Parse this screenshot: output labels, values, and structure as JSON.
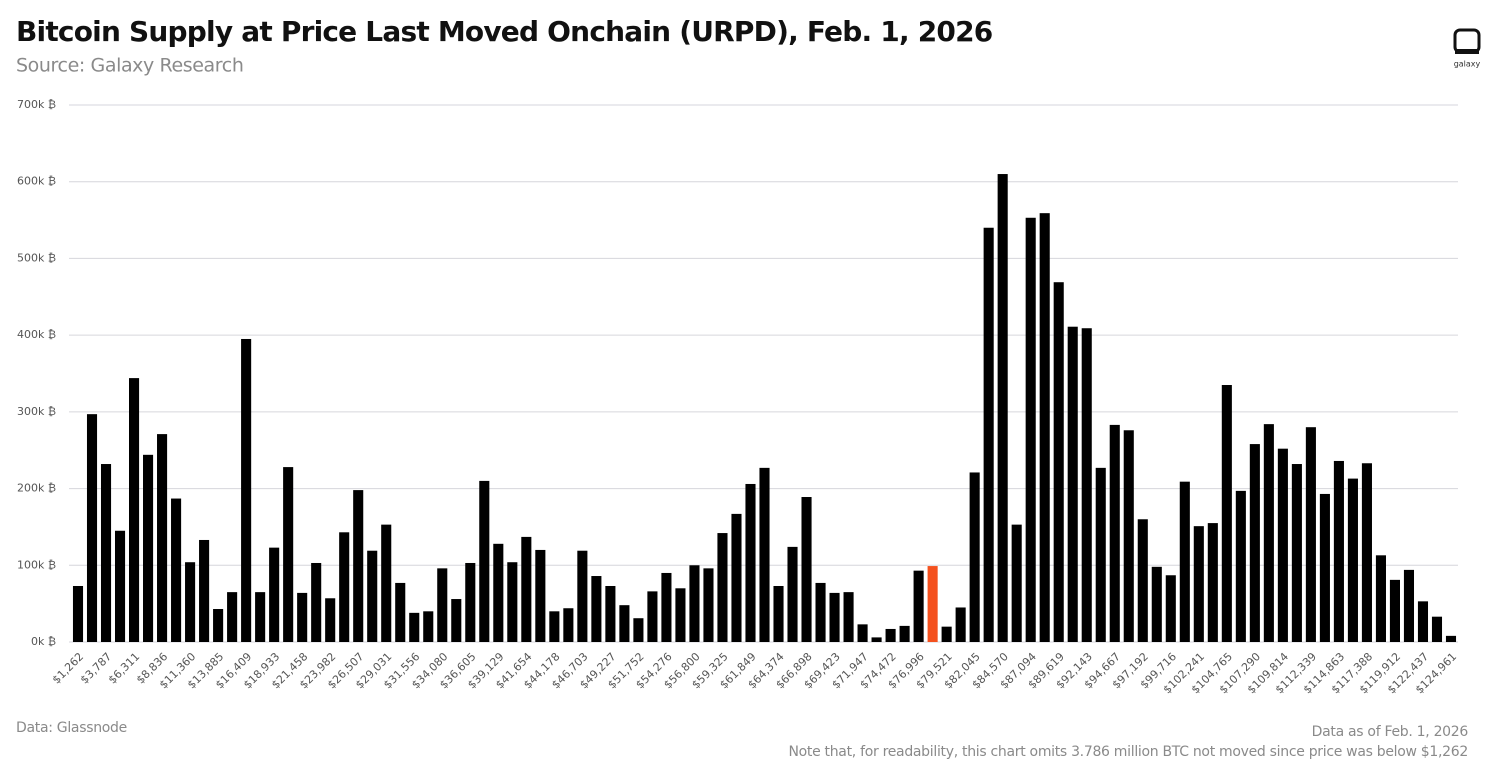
{
  "chart_data": {
    "type": "bar",
    "title": "Bitcoin Supply at Price Last Moved Onchain (URPD), Feb. 1, 2026",
    "subtitle": "Source: Galaxy Research",
    "logo_text": "galaxy",
    "source": "Data: Glassnode",
    "date_note": "Data as of Feb. 1, 2026",
    "note": "Note that, for readability, this chart omits 3.786 million BTC not moved since price was below $1,262",
    "categories": [
      "$1,262",
      null,
      "$3,787",
      null,
      "$6,311",
      null,
      "$8,836",
      null,
      "$11,360",
      null,
      "$13,885",
      null,
      "$16,409",
      null,
      "$18,933",
      null,
      "$21,458",
      null,
      "$23,982",
      null,
      "$26,507",
      null,
      "$29,031",
      null,
      "$31,556",
      null,
      "$34,080",
      null,
      "$36,605",
      null,
      "$39,129",
      null,
      "$41,654",
      null,
      "$44,178",
      null,
      "$46,703",
      null,
      "$49,227",
      null,
      "$51,752",
      null,
      "$54,276",
      null,
      "$56,800",
      null,
      "$59,325",
      null,
      "$61,849",
      null,
      "$64,374",
      null,
      "$66,898",
      null,
      "$69,423",
      null,
      "$71,947",
      null,
      "$74,472",
      null,
      "$76,996",
      null,
      "$79,521",
      null,
      "$82,045",
      null,
      "$84,570",
      null,
      "$87,094",
      null,
      "$89,619",
      null,
      "$92,143",
      null,
      "$94,667",
      null,
      "$97,192",
      null,
      "$99,716",
      null,
      "$102,241",
      null,
      "$104,765",
      null,
      "$107,290",
      null,
      "$109,814",
      null,
      "$112,339",
      null,
      "$114,863",
      null,
      "$117,388",
      null,
      "$119,912",
      null,
      "$122,437",
      null,
      "$124,961"
    ],
    "values": [
      73000,
      297000,
      232000,
      145000,
      344000,
      244000,
      271000,
      187000,
      104000,
      133000,
      43000,
      65000,
      395000,
      65000,
      123000,
      228000,
      64000,
      103000,
      57000,
      143000,
      198000,
      119000,
      153000,
      77000,
      38000,
      40000,
      96000,
      56000,
      103000,
      210000,
      128000,
      104000,
      137000,
      120000,
      40000,
      44000,
      119000,
      86000,
      73000,
      48000,
      31000,
      66000,
      90000,
      70000,
      100000,
      96000,
      142000,
      167000,
      206000,
      227000,
      73000,
      124000,
      189000,
      77000,
      64000,
      65000,
      23000,
      6000,
      17000,
      21000,
      93000,
      99000,
      20000,
      45000,
      221000,
      540000,
      610000,
      153000,
      553000,
      559000,
      469000,
      411000,
      409000,
      227000,
      283000,
      276000,
      160000,
      98000,
      87000,
      209000,
      151000,
      155000,
      335000,
      197000,
      258000,
      284000,
      252000,
      232000,
      280000,
      193000,
      236000,
      213000,
      233000,
      113000,
      81000,
      94000,
      53000,
      33000,
      8000
    ],
    "colors": [
      "#000000",
      "#000000",
      "#000000",
      "#000000",
      "#000000",
      "#000000",
      "#000000",
      "#000000",
      "#000000",
      "#000000",
      "#000000",
      "#000000",
      "#000000",
      "#000000",
      "#000000",
      "#000000",
      "#000000",
      "#000000",
      "#000000",
      "#000000",
      "#000000",
      "#000000",
      "#000000",
      "#000000",
      "#000000",
      "#000000",
      "#000000",
      "#000000",
      "#000000",
      "#000000",
      "#000000",
      "#000000",
      "#000000",
      "#000000",
      "#000000",
      "#000000",
      "#000000",
      "#000000",
      "#000000",
      "#000000",
      "#000000",
      "#000000",
      "#000000",
      "#000000",
      "#000000",
      "#000000",
      "#000000",
      "#000000",
      "#000000",
      "#000000",
      "#000000",
      "#000000",
      "#000000",
      "#000000",
      "#000000",
      "#000000",
      "#000000",
      "#000000",
      "#000000",
      "#000000",
      "#000000",
      "#f4511e",
      "#000000",
      "#000000",
      "#000000",
      "#000000",
      "#000000",
      "#000000",
      "#000000",
      "#000000",
      "#000000",
      "#000000",
      "#000000",
      "#000000",
      "#000000",
      "#000000",
      "#000000",
      "#000000",
      "#000000",
      "#000000",
      "#000000",
      "#000000",
      "#000000",
      "#000000",
      "#000000",
      "#000000",
      "#000000",
      "#000000",
      "#000000",
      "#000000",
      "#000000",
      "#000000",
      "#000000",
      "#000000",
      "#000000",
      "#000000",
      "#000000",
      "#000000",
      "#000000"
    ],
    "ylim": [
      0,
      700000
    ],
    "yticks": [
      {
        "value": 0,
        "label": "0k ₿"
      },
      {
        "value": 100000,
        "label": "100k ₿"
      },
      {
        "value": 200000,
        "label": "200k ₿"
      },
      {
        "value": 300000,
        "label": "300k ₿"
      },
      {
        "value": 400000,
        "label": "400k ₿"
      },
      {
        "value": 500000,
        "label": "500k ₿"
      },
      {
        "value": 600000,
        "label": "600k ₿"
      },
      {
        "value": 700000,
        "label": "700k ₿"
      }
    ],
    "grid": true
  }
}
